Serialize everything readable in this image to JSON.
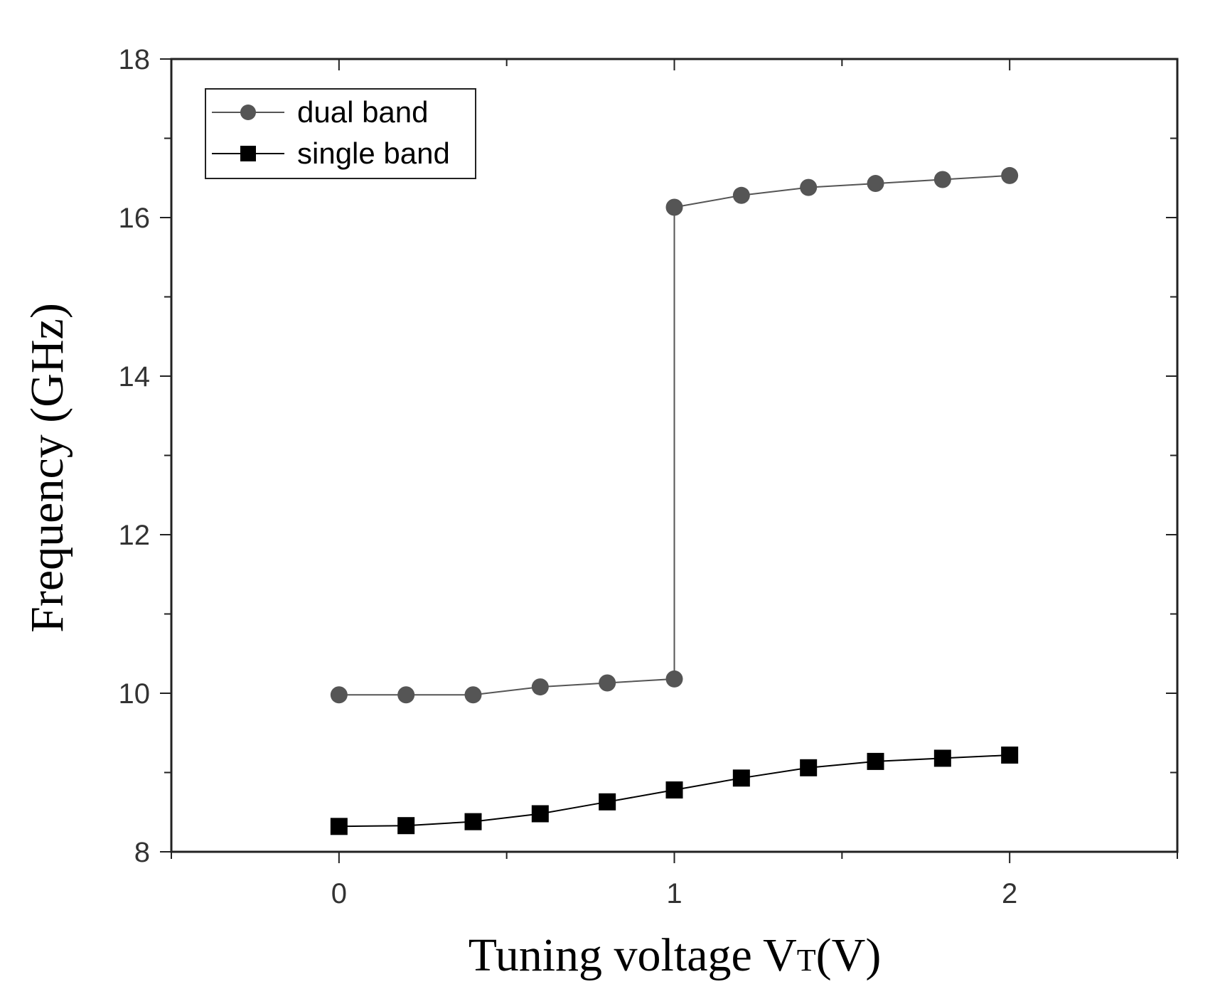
{
  "chart_data": {
    "type": "line",
    "title": "",
    "xlabel": "Tuning voltage V",
    "xlabel_sub": "T",
    "xlabel_suffix": "(V)",
    "ylabel": "Frequency (GHz)",
    "xlim": [
      -0.5,
      2.5
    ],
    "ylim": [
      8,
      18
    ],
    "x_ticks": [
      0,
      1,
      2
    ],
    "y_ticks": [
      8,
      10,
      12,
      14,
      16,
      18
    ],
    "grid": false,
    "legend_position": "top-left",
    "series": [
      {
        "name": "dual band",
        "marker": "circle",
        "color": "#555555",
        "x": [
          0,
          0.2,
          0.4,
          0.6,
          0.8,
          1.0,
          1.0,
          1.2,
          1.4,
          1.6,
          1.8,
          2.0
        ],
        "y": [
          9.98,
          9.98,
          9.98,
          10.08,
          10.13,
          10.18,
          16.13,
          16.28,
          16.38,
          16.43,
          16.48,
          16.53
        ]
      },
      {
        "name": "single band",
        "marker": "square",
        "color": "#000000",
        "x": [
          0,
          0.2,
          0.4,
          0.6,
          0.8,
          1.0,
          1.2,
          1.4,
          1.6,
          1.8,
          2.0
        ],
        "y": [
          8.32,
          8.33,
          8.38,
          8.48,
          8.63,
          8.78,
          8.93,
          9.06,
          9.14,
          9.18,
          9.22
        ]
      }
    ]
  }
}
